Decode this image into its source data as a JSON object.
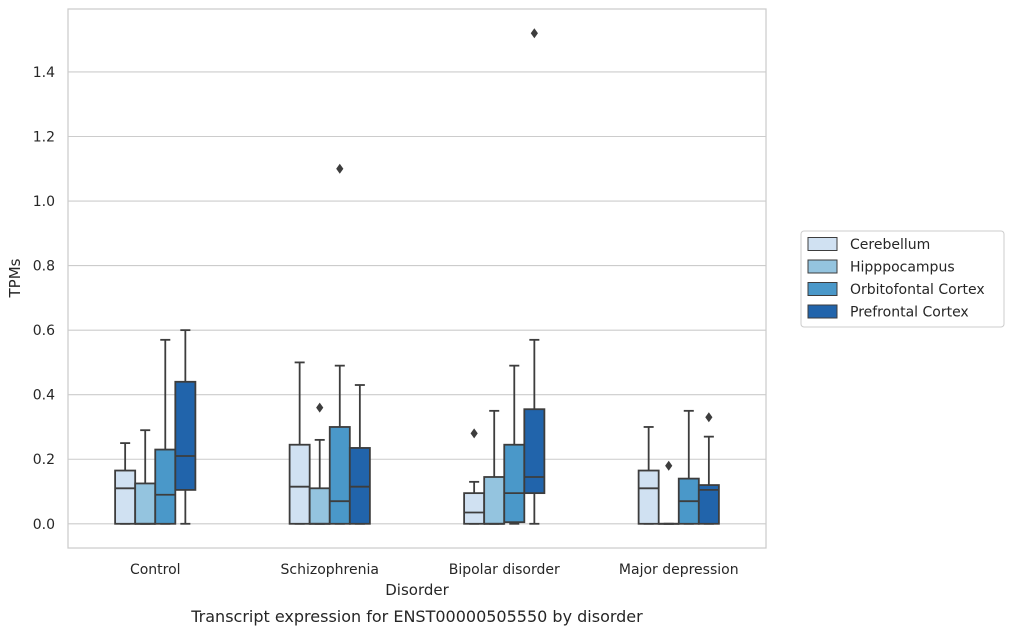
{
  "chart_data": {
    "type": "box",
    "caption": "Transcript expression for ENST00000505550 by disorder",
    "xlabel": "Disorder",
    "ylabel": "TPMs",
    "ylim": [
      -0.075,
      1.595
    ],
    "yticks": [
      0.0,
      0.2,
      0.4,
      0.6,
      0.8,
      1.0,
      1.2,
      1.4
    ],
    "ytick_labels": [
      "0.0",
      "0.2",
      "0.4",
      "0.6",
      "0.8",
      "1.0",
      "1.2",
      "1.4"
    ],
    "grid": "horizontal",
    "legend_placement": "outside-right",
    "categories": [
      "Control",
      "Schizophrenia",
      "Bipolar disorder",
      "Major depression"
    ],
    "series": [
      {
        "name": "Cerebellum",
        "color": "#d0e1f2",
        "boxes": [
          {
            "whisker_low": 0.0,
            "q1": 0.0,
            "median": 0.11,
            "q3": 0.165,
            "whisker_high": 0.25,
            "outliers": []
          },
          {
            "whisker_low": 0.0,
            "q1": 0.0,
            "median": 0.115,
            "q3": 0.245,
            "whisker_high": 0.5,
            "outliers": []
          },
          {
            "whisker_low": 0.0,
            "q1": 0.0,
            "median": 0.035,
            "q3": 0.095,
            "whisker_high": 0.13,
            "outliers": [
              0.28
            ]
          },
          {
            "whisker_low": 0.0,
            "q1": 0.0,
            "median": 0.11,
            "q3": 0.165,
            "whisker_high": 0.3,
            "outliers": []
          }
        ]
      },
      {
        "name": "Hipppocampus",
        "color": "#94c4df",
        "boxes": [
          {
            "whisker_low": 0.0,
            "q1": 0.0,
            "median": 0.0,
            "q3": 0.125,
            "whisker_high": 0.29,
            "outliers": []
          },
          {
            "whisker_low": 0.0,
            "q1": 0.0,
            "median": 0.0,
            "q3": 0.11,
            "whisker_high": 0.26,
            "outliers": [
              0.36
            ]
          },
          {
            "whisker_low": 0.0,
            "q1": 0.0,
            "median": 0.0,
            "q3": 0.145,
            "whisker_high": 0.35,
            "outliers": []
          },
          {
            "whisker_low": 0.0,
            "q1": 0.0,
            "median": 0.0,
            "q3": 0.0,
            "whisker_high": 0.0,
            "outliers": [
              0.18
            ]
          }
        ]
      },
      {
        "name": "Orbitofontal Cortex",
        "color": "#4a98c9",
        "boxes": [
          {
            "whisker_low": 0.0,
            "q1": 0.0,
            "median": 0.09,
            "q3": 0.23,
            "whisker_high": 0.57,
            "outliers": []
          },
          {
            "whisker_low": 0.0,
            "q1": 0.0,
            "median": 0.07,
            "q3": 0.3,
            "whisker_high": 0.49,
            "outliers": [
              1.1
            ]
          },
          {
            "whisker_low": 0.0,
            "q1": 0.005,
            "median": 0.095,
            "q3": 0.245,
            "whisker_high": 0.49,
            "outliers": []
          },
          {
            "whisker_low": 0.0,
            "q1": 0.0,
            "median": 0.07,
            "q3": 0.14,
            "whisker_high": 0.35,
            "outliers": []
          }
        ]
      },
      {
        "name": "Prefrontal Cortex",
        "color": "#2164ab",
        "boxes": [
          {
            "whisker_low": 0.0,
            "q1": 0.105,
            "median": 0.21,
            "q3": 0.44,
            "whisker_high": 0.6,
            "outliers": []
          },
          {
            "whisker_low": 0.0,
            "q1": 0.0,
            "median": 0.115,
            "q3": 0.235,
            "whisker_high": 0.43,
            "outliers": []
          },
          {
            "whisker_low": 0.0,
            "q1": 0.095,
            "median": 0.145,
            "q3": 0.355,
            "whisker_high": 0.57,
            "outliers": [
              1.52
            ]
          },
          {
            "whisker_low": 0.0,
            "q1": 0.0,
            "median": 0.105,
            "q3": 0.12,
            "whisker_high": 0.27,
            "outliers": [
              0.33
            ]
          }
        ]
      }
    ]
  },
  "colors": {
    "edge": "#3d3d3d",
    "grid": "#cccccc",
    "frame": "#cccccc",
    "text": "#262626"
  }
}
